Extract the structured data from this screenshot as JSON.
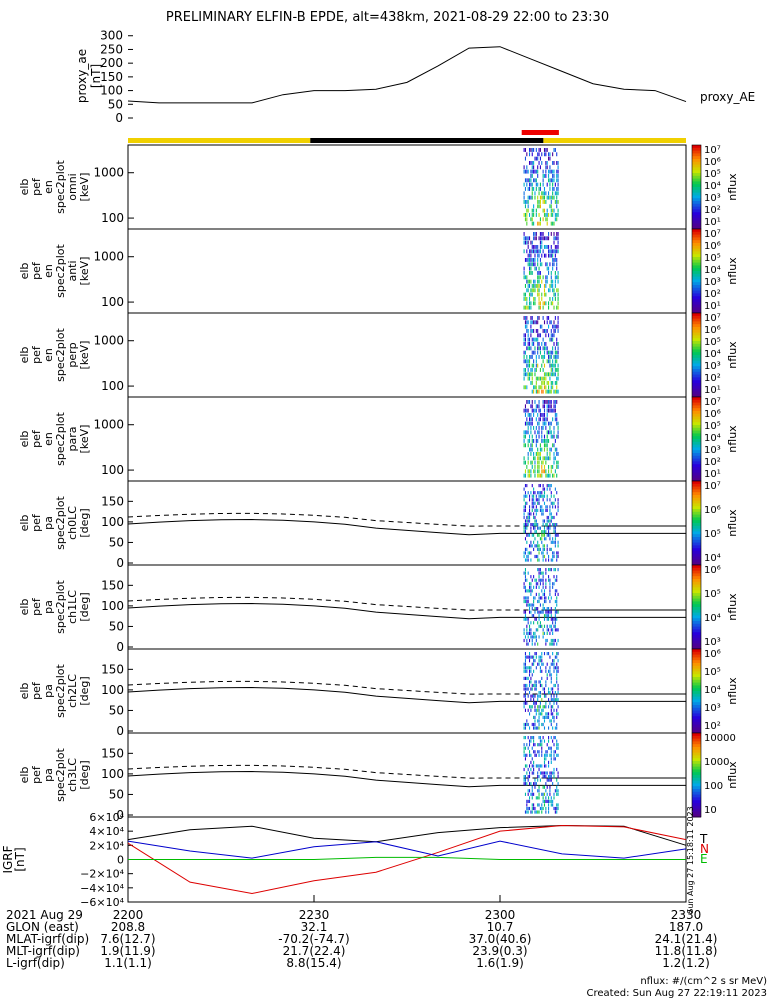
{
  "title": "PRELIMINARY ELFIN-B EPDE, alt=438km, 2021-08-29 22:00 to 23:30",
  "chart_data": [
    {
      "type": "line",
      "name": "proxy_ae",
      "ylabel": [
        "proxy_ae",
        "[nT]"
      ],
      "legend": "proxy_AE",
      "ylim": [
        0,
        310
      ],
      "yticks": [
        "300",
        "250",
        "200",
        "150",
        "100",
        "50",
        "0"
      ],
      "x_minutes": [
        0,
        5,
        10,
        15,
        20,
        25,
        30,
        35,
        40,
        45,
        50,
        55,
        60,
        65,
        70,
        75,
        80,
        85,
        90
      ],
      "values": [
        62,
        55,
        55,
        55,
        55,
        85,
        100,
        100,
        105,
        130,
        190,
        255,
        260,
        215,
        170,
        125,
        105,
        100,
        60
      ]
    },
    {
      "type": "heatmap",
      "name": "omni",
      "ylabel": [
        "elb",
        "pef",
        "en",
        "spec2plot",
        "omni",
        "[keV]"
      ],
      "ytick_labels": [
        "1000",
        "100"
      ],
      "colorbar_label": "nflux",
      "colorbar_ticks": [
        "10⁷",
        "10⁶",
        "10⁵",
        "10⁴",
        "10³",
        "10²",
        "10¹"
      ]
    },
    {
      "type": "heatmap",
      "name": "anti",
      "ylabel": [
        "elb",
        "pef",
        "en",
        "spec2plot",
        "anti",
        "[keV]"
      ],
      "ytick_labels": [
        "1000",
        "100"
      ],
      "colorbar_label": "nflux",
      "colorbar_ticks": [
        "10⁷",
        "10⁶",
        "10⁵",
        "10⁴",
        "10³",
        "10²",
        "10¹"
      ]
    },
    {
      "type": "heatmap",
      "name": "perp",
      "ylabel": [
        "elb",
        "pef",
        "en",
        "spec2plot",
        "perp",
        "[keV]"
      ],
      "ytick_labels": [
        "1000",
        "100"
      ],
      "colorbar_label": "nflux",
      "colorbar_ticks": [
        "10⁷",
        "10⁶",
        "10⁵",
        "10⁴",
        "10³",
        "10²",
        "10¹"
      ]
    },
    {
      "type": "heatmap",
      "name": "para",
      "ylabel": [
        "elb",
        "pef",
        "en",
        "spec2plot",
        "para",
        "[keV]"
      ],
      "ytick_labels": [
        "1000",
        "100"
      ],
      "colorbar_label": "nflux",
      "colorbar_ticks": [
        "10⁷",
        "10⁶",
        "10⁵",
        "10⁴",
        "10³",
        "10²",
        "10¹"
      ]
    },
    {
      "type": "heatmap",
      "name": "ch0LC",
      "ylabel": [
        "elb",
        "pef",
        "pa",
        "spec2plot",
        "ch0LC",
        "[deg]"
      ],
      "yticks": [
        "150",
        "100",
        "50",
        "0"
      ],
      "colorbar_label": "nflux",
      "colorbar_ticks": [
        "10⁷",
        "10⁶",
        "10⁵",
        "10⁴"
      ]
    },
    {
      "type": "heatmap",
      "name": "ch1LC",
      "ylabel": [
        "elb",
        "pef",
        "pa",
        "spec2plot",
        "ch1LC",
        "[deg]"
      ],
      "yticks": [
        "150",
        "100",
        "50",
        "0"
      ],
      "colorbar_label": "nflux",
      "colorbar_ticks": [
        "10⁶",
        "10⁵",
        "10⁴",
        "10³"
      ]
    },
    {
      "type": "heatmap",
      "name": "ch2LC",
      "ylabel": [
        "elb",
        "pef",
        "pa",
        "spec2plot",
        "ch2LC",
        "[deg]"
      ],
      "yticks": [
        "150",
        "100",
        "50",
        "0"
      ],
      "colorbar_label": "nflux",
      "colorbar_ticks": [
        "10⁶",
        "10⁵",
        "10⁴",
        "10³",
        "10²"
      ]
    },
    {
      "type": "heatmap",
      "name": "ch3LC",
      "ylabel": [
        "elb",
        "pef",
        "pa",
        "spec2plot",
        "ch3LC",
        "[deg]"
      ],
      "yticks": [
        "150",
        "100",
        "50",
        "0"
      ],
      "colorbar_label": "nflux",
      "colorbar_ticks": [
        "10000",
        "1000",
        "100",
        "10"
      ]
    },
    {
      "type": "line",
      "name": "IGRF",
      "ylabel": [
        "IGRF",
        "[nT]"
      ],
      "ylim": [
        -60000,
        60000
      ],
      "yticks": [
        "6×10⁴",
        "4×10⁴",
        "2×10⁴",
        "0",
        "−2×10⁴",
        "−4×10⁴",
        "−6×10⁴"
      ],
      "legend": [
        "T",
        "N",
        "E"
      ],
      "x_minutes": [
        0,
        10,
        20,
        30,
        40,
        50,
        60,
        70,
        80,
        90
      ],
      "series": [
        {
          "name": "T",
          "color": "#000000",
          "values": [
            28000,
            42000,
            47000,
            30000,
            25000,
            38000,
            45000,
            48000,
            47000,
            20000
          ]
        },
        {
          "name": "N",
          "color": "#dd0000",
          "values": [
            23000,
            -32000,
            -48000,
            -30000,
            -18000,
            10000,
            40000,
            48000,
            46000,
            28000
          ]
        },
        {
          "name": "E",
          "color": "#0000cc",
          "values": [
            26000,
            12000,
            2000,
            18000,
            25000,
            5000,
            26000,
            8000,
            2000,
            15000
          ]
        },
        {
          "name": "",
          "color": "#00bb00",
          "values": [
            0,
            0,
            0,
            0,
            3000,
            3000,
            0,
            0,
            0,
            0
          ]
        }
      ]
    }
  ],
  "time_axis": {
    "ticks": [
      "2200",
      "2230",
      "2300",
      "2330"
    ],
    "rows": [
      {
        "label": "2021 Aug 29",
        "values": [
          "2200",
          "2230",
          "2300",
          "2330"
        ]
      },
      {
        "label": "GLON (east)",
        "values": [
          "208.8",
          "32.1",
          "10.7",
          "187.0"
        ]
      },
      {
        "label": "MLAT-igrf(dip)",
        "values": [
          "7.6(12.7)",
          "-70.2(-74.7)",
          "37.0(40.6)",
          "24.1(21.4)"
        ]
      },
      {
        "label": "MLT-igrf(dip)",
        "values": [
          "1.9(11.9)",
          "21.7(22.4)",
          "23.9(0.3)",
          "11.8(11.8)"
        ]
      },
      {
        "label": "L-igrf(dip)",
        "values": [
          "1.1(1.1)",
          "8.8(15.4)",
          "1.6(1.9)",
          "1.2(1.2)"
        ]
      }
    ]
  },
  "note_units": "nflux: #/(cm^2 s sr MeV)",
  "note_created": "Created: Sun Aug 27 22:19:11 2023",
  "vertical_stamp": "Sun Aug 27 15:18:11 2023"
}
